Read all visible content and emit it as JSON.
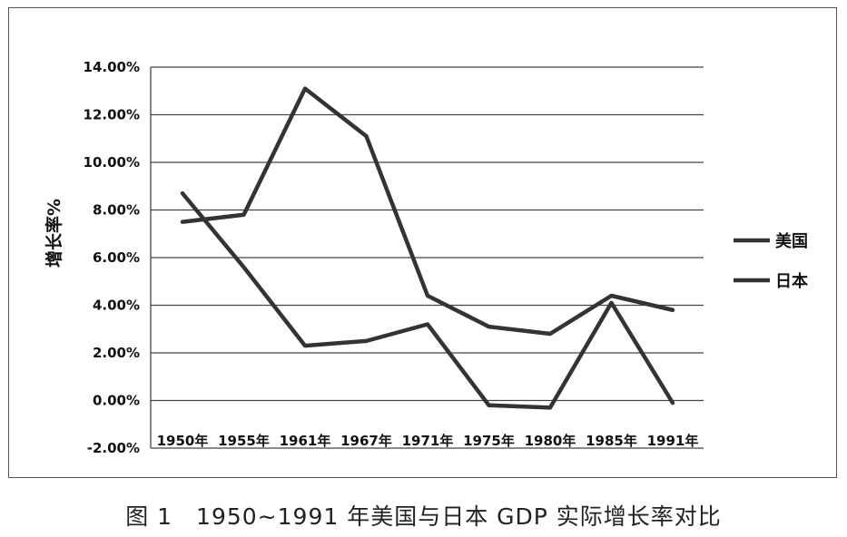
{
  "chart_data": {
    "type": "line",
    "categories": [
      "1950年",
      "1955年",
      "1961年",
      "1967年",
      "1971年",
      "1975年",
      "1980年",
      "1985年",
      "1991年"
    ],
    "series": [
      {
        "name": "美国",
        "values": [
          8.7,
          5.6,
          2.3,
          2.5,
          3.2,
          -0.2,
          -0.3,
          4.1,
          -0.1
        ]
      },
      {
        "name": "日本",
        "values": [
          7.5,
          7.8,
          13.1,
          11.1,
          4.4,
          3.1,
          2.8,
          4.4,
          3.8
        ]
      }
    ],
    "y_ticks": [
      "-2.00%",
      "0.00%",
      "2.00%",
      "4.00%",
      "6.00%",
      "8.00%",
      "10.00%",
      "12.00%",
      "14.00%"
    ],
    "ylim": [
      -2,
      14
    ],
    "ylabel": "增长率%",
    "xlabel": "",
    "grid": "horizontal",
    "legend_position": "right",
    "line_color": "#333333"
  },
  "caption": "图 1　1950~1991 年美国与日本 GDP 实际增长率对比"
}
